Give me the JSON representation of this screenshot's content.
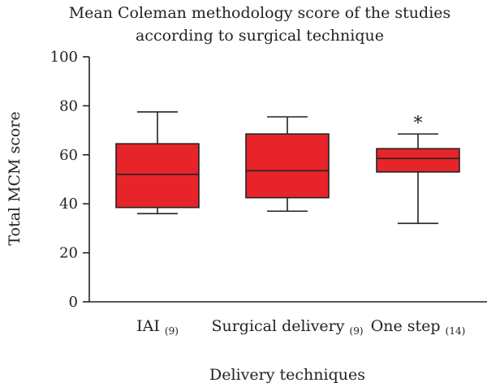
{
  "chart_data": {
    "type": "box",
    "title_lines": [
      "Mean Coleman methodology score of the studies",
      "according to surgical technique"
    ],
    "xlabel": "Delivery techniques",
    "ylabel": "Total MCM score",
    "ylim": [
      0,
      100
    ],
    "yticks": [
      0,
      20,
      40,
      60,
      80,
      100
    ],
    "grid": false,
    "box_color": "#e8242b",
    "categories": [
      {
        "label": "IAI",
        "n_label": "(9)",
        "min": 36,
        "q1": 38.5,
        "median": 52,
        "q3": 64.5,
        "max": 77.5,
        "annotation": ""
      },
      {
        "label": "Surgical delivery",
        "n_label": "(9)",
        "min": 37,
        "q1": 42.5,
        "median": 53.5,
        "q3": 68.5,
        "max": 75.5,
        "annotation": ""
      },
      {
        "label": "One step",
        "n_label": "(14)",
        "min": 32,
        "q1": 53,
        "median": 58.5,
        "q3": 62.5,
        "max": 68.5,
        "annotation": "*"
      }
    ]
  }
}
